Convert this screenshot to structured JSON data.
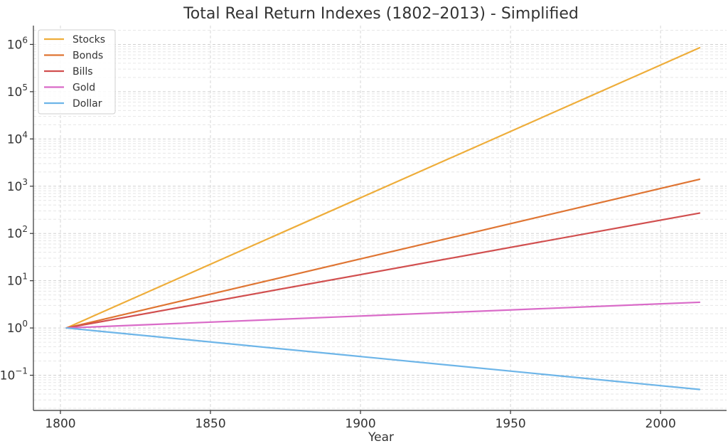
{
  "chart_data": {
    "type": "line",
    "title": "Total Real Return Indexes (1802–2013) - Simplified",
    "xlabel": "Year",
    "ylabel": "",
    "yscale": "log",
    "xlim": [
      1791,
      2022
    ],
    "ylim": [
      0.018,
      2500000
    ],
    "grid": true,
    "legend_position": "top-left",
    "x_ticks": [
      1800,
      1850,
      1900,
      1950,
      2000
    ],
    "y_ticks": [
      {
        "value": 0.1,
        "base": "10",
        "exp": "−1"
      },
      {
        "value": 1,
        "base": "10",
        "exp": "0"
      },
      {
        "value": 10,
        "base": "10",
        "exp": "1"
      },
      {
        "value": 100,
        "base": "10",
        "exp": "2"
      },
      {
        "value": 1000,
        "base": "10",
        "exp": "3"
      },
      {
        "value": 10000,
        "base": "10",
        "exp": "4"
      },
      {
        "value": 100000,
        "base": "10",
        "exp": "5"
      },
      {
        "value": 1000000,
        "base": "10",
        "exp": "6"
      }
    ],
    "series": [
      {
        "name": "Stocks",
        "color": "#eead3a",
        "x": [
          1802,
          2013
        ],
        "y": [
          1,
          850000
        ]
      },
      {
        "name": "Bonds",
        "color": "#df7533",
        "x": [
          1802,
          2013
        ],
        "y": [
          1,
          1400
        ]
      },
      {
        "name": "Bills",
        "color": "#d14f4f",
        "x": [
          1802,
          2013
        ],
        "y": [
          1,
          270
        ]
      },
      {
        "name": "Gold",
        "color": "#d96bc8",
        "x": [
          1802,
          2013
        ],
        "y": [
          1,
          3.5
        ]
      },
      {
        "name": "Dollar",
        "color": "#6db5e8",
        "x": [
          1802,
          2013
        ],
        "y": [
          1,
          0.05
        ]
      }
    ]
  }
}
